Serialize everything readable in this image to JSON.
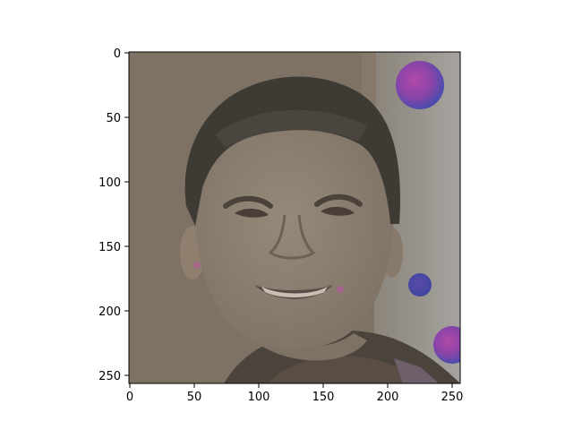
{
  "figure": {
    "type": "image",
    "image_subject": "smiling-man-portrait",
    "x_ticks": [
      "0",
      "50",
      "100",
      "150",
      "200",
      "250"
    ],
    "y_ticks": [
      "0",
      "50",
      "100",
      "150",
      "200",
      "250"
    ],
    "x_range": [
      0,
      256
    ],
    "y_range": [
      256,
      0
    ],
    "colors": {
      "background": "#7d7264",
      "right_wall": "#9a9690",
      "hair": "#3e3a34",
      "skin": "#8b7f6f",
      "artifact_magenta": "#a0409f",
      "artifact_blue": "#4a4aa8"
    }
  }
}
